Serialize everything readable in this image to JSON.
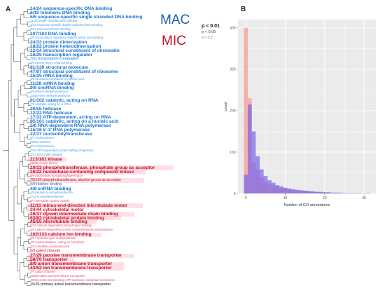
{
  "figure": {
    "panel_a_label": "A",
    "panel_b_label": "B",
    "mac_label": "MAC",
    "mic_label": "MIC",
    "p_legend": {
      "p1": "p < 0.01",
      "p2": "p < 0.05",
      "p3": "p < 0.2"
    },
    "colors": {
      "mac": "#1c75d0",
      "mic": "#c8132b",
      "mac_bar": "#6a5cf0",
      "mic_bar": "#f4a6a0",
      "overlap": "#9c6fc8"
    }
  },
  "terms": [
    {
      "text": "14/24 sequence-specific DNA binding",
      "group": "mac",
      "size": "big"
    },
    {
      "text": "6/10 telomeric DNA binding",
      "group": "mac",
      "size": "big"
    },
    {
      "text": "5/5 sequence-specific single stranded DNA binding",
      "group": "mac",
      "size": "big"
    },
    {
      "text": "11/15 single-stranded DNA binding",
      "group": "mac",
      "size": "small"
    },
    {
      "text": "4/11 sequence-specific double-stranded DNA binding",
      "group": "mac",
      "size": "small"
    },
    {
      "text": "2/6 nucleosomal DNA binding",
      "group": "mac",
      "size": "small"
    },
    {
      "text": "107/163 DNA binding",
      "group": "mac",
      "size": "big"
    },
    {
      "text": "3/5 transcription regulatory region nucleic acid binding",
      "group": "mac",
      "size": "small"
    },
    {
      "text": "24/33 protein dimerization",
      "group": "mac",
      "size": "big"
    },
    {
      "text": "18/22 protein heterodimerization",
      "group": "mac",
      "size": "big"
    },
    {
      "text": "12/14 structural constituent of chromatin",
      "group": "mac",
      "size": "big"
    },
    {
      "text": "16/25 transcription regulator",
      "group": "mac",
      "size": "big"
    },
    {
      "text": "7/11 transcription coregulator",
      "group": "mac",
      "size": "mid"
    },
    {
      "text": "5/6 dynein heavy chain binding",
      "group": "mac",
      "size": "small"
    },
    {
      "text": "81/139 structural molecule",
      "group": "mac",
      "size": "big"
    },
    {
      "text": "47/97 structural constituent of ribosome",
      "group": "mac",
      "size": "big"
    },
    {
      "text": "15/25 rRNA binding",
      "group": "mac",
      "size": "big"
    },
    {
      "text": "4/6 structural constituent of nuclear pore",
      "group": "mac",
      "size": "small"
    },
    {
      "text": "11/28 mRNA binding",
      "group": "mac",
      "size": "big"
    },
    {
      "text": "9/9 snoRNA binding",
      "group": "mac",
      "size": "big"
    },
    {
      "text": "4/5 rRNA methyltransferase",
      "group": "mac",
      "size": "small"
    },
    {
      "text": "10/16 RNA methyltransferase",
      "group": "mac",
      "size": "small"
    },
    {
      "text": "61/102 catalytic, acting on RNA",
      "group": "mac",
      "size": "big"
    },
    {
      "text": "7/9 catalytic, acting on a rRNA",
      "group": "mac",
      "size": "small"
    },
    {
      "text": "30/55 helicase",
      "group": "mac",
      "size": "big"
    },
    {
      "text": "12/22 RNA helicase",
      "group": "mac",
      "size": "big"
    },
    {
      "text": "17/32 ATP-dependent, acting on RNA",
      "group": "mac",
      "size": "big"
    },
    {
      "text": "95/161 catalytic, acting on a nucleic acid",
      "group": "mac",
      "size": "big"
    },
    {
      "text": "5/6 RNA-dependent RNA polymerase",
      "group": "mac",
      "size": "big"
    },
    {
      "text": "15/18 5'-3' RNA polymerase",
      "group": "mac",
      "size": "big"
    },
    {
      "text": "22/37 nucleotidyltransferase",
      "group": "mac",
      "size": "big"
    },
    {
      "text": "6/7 endonuclease",
      "group": "mac",
      "size": "small"
    },
    {
      "text": "20/34 nuclease",
      "group": "mac",
      "size": "small"
    },
    {
      "text": "6/13 ribonuclease",
      "group": "mac",
      "size": "small"
    },
    {
      "text": "3/20 ATP-dependent protein folding chaperone",
      "group": "mac",
      "size": "small"
    },
    {
      "text": "3/13 MAD2-like binding",
      "group": "mac",
      "size": "small"
    },
    {
      "text": "113/181 kinase",
      "group": "mic",
      "size": "big"
    },
    {
      "text": "40/86 protein kinase",
      "group": "mic",
      "size": "small"
    },
    {
      "text": "10/13 phosphotransferase, phosphate group as acceptor",
      "group": "mic",
      "size": "big"
    },
    {
      "text": "16/22 nucleobase-containing compound kinase",
      "group": "mic",
      "size": "big"
    },
    {
      "text": "8/9 nucleoside monophosphate kinase",
      "group": "mic",
      "size": "small"
    },
    {
      "text": "75/120 phosphotransferase, alcohol group as acceptor",
      "group": "mic",
      "size": "mid"
    },
    {
      "text": "4/8 histone binding",
      "group": "mac",
      "size": "mid"
    },
    {
      "text": "4/6 snRNA binding",
      "group": "mac",
      "size": "big"
    },
    {
      "text": "3/8 peptide N-acetyltransferase",
      "group": "mac",
      "size": "small"
    },
    {
      "text": "7/12 N-acetyltransferase",
      "group": "mac",
      "size": "small"
    },
    {
      "text": "4/7 adenylate cyclase activity",
      "group": "mic",
      "size": "small"
    },
    {
      "text": "11/11 minus-end-directed microtubule motor",
      "group": "mic",
      "size": "big"
    },
    {
      "text": "34/44 cytoskeletal motor",
      "group": "mic",
      "size": "big"
    },
    {
      "text": "16/17 dynein intermediate chain binding",
      "group": "mic",
      "size": "big"
    },
    {
      "text": "63/83 cytoskeletal protein binding",
      "group": "mic",
      "size": "big"
    },
    {
      "text": "45/55 microtubule binding",
      "group": "mic",
      "size": "big"
    },
    {
      "text": "6/11 calcium-dependent phospholipid binding",
      "group": "mic",
      "size": "small"
    },
    {
      "text": "4/5 calcium-dependent protein serine/threonine phosphatase",
      "group": "mic",
      "size": "small"
    },
    {
      "text": "102/133 calcium ion binding",
      "group": "mic",
      "size": "big"
    },
    {
      "text": "4/17 cysteine-type endopeptidase",
      "group": "mic",
      "size": "small"
    },
    {
      "text": "7/9 oxidoreductase, acting on NAD(P)H",
      "group": "mic",
      "size": "small"
    },
    {
      "text": "3/11 disulfide oxidoreductase",
      "group": "mic",
      "size": "small"
    },
    {
      "text": "5/6 gated channel",
      "group": "mic",
      "size": "mid"
    },
    {
      "text": "27/29 passive transmembrane transporter",
      "group": "mic",
      "size": "big"
    },
    {
      "text": "58/70 transporter",
      "group": "mic",
      "size": "big"
    },
    {
      "text": "8/9 anion transmembrane transporter",
      "group": "mic",
      "size": "big"
    },
    {
      "text": "43/52 ion transmembrane transporter",
      "group": "mic",
      "size": "big"
    },
    {
      "text": "7/7 cation channel",
      "group": "mic",
      "size": "small"
    },
    {
      "text": "20/28 cation transmembrane transporter",
      "group": "mic",
      "size": "small"
    },
    {
      "text": "10/15 proton-transporting ATP synthase, rotational mechanism",
      "group": "mic",
      "size": "small"
    },
    {
      "text": "19/26 primary active transmembrane transporter",
      "group": "other",
      "size": "mid"
    }
  ],
  "chart_data": {
    "type": "bar",
    "title": "",
    "xlabel": "Number of GO annotations",
    "ylabel": "count",
    "xlim": [
      -2,
      33
    ],
    "ylim": [
      0,
      420
    ],
    "x_ticks": [
      0,
      10,
      20,
      30
    ],
    "y_ticks": [
      0,
      100,
      200,
      300,
      400
    ],
    "grid": true,
    "legend": "none",
    "x": [
      0,
      1,
      2,
      3,
      4,
      5,
      6,
      7,
      8,
      9,
      10,
      11,
      12,
      13,
      14,
      15,
      16,
      17,
      18,
      19,
      20,
      21,
      22,
      23,
      24,
      25,
      26,
      27,
      28,
      29,
      30,
      31
    ],
    "series": [
      {
        "group": "mic",
        "values": [
          400,
          230,
          75,
          58,
          38,
          28,
          22,
          18,
          16,
          13,
          12,
          10,
          9,
          8,
          7,
          6,
          5,
          4,
          4,
          3,
          3,
          2,
          2,
          2,
          1,
          1,
          1,
          1,
          1,
          0,
          0,
          1
        ]
      },
      {
        "group": "mac",
        "values": [
          45,
          215,
          150,
          90,
          58,
          42,
          32,
          26,
          20,
          17,
          14,
          12,
          10,
          9,
          8,
          7,
          6,
          5,
          4,
          4,
          3,
          3,
          2,
          2,
          2,
          1,
          1,
          1,
          1,
          1,
          0,
          1
        ]
      }
    ]
  }
}
